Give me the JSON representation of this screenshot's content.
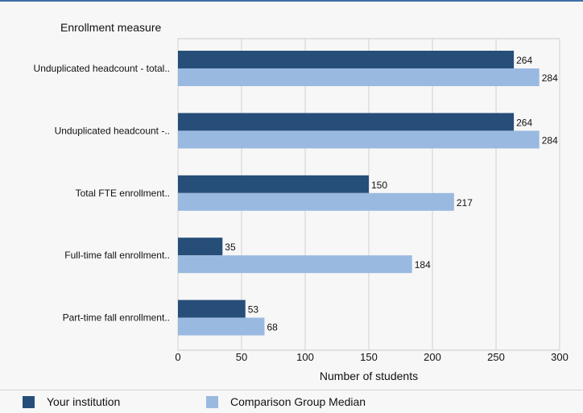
{
  "chart_data": {
    "type": "bar",
    "orientation": "horizontal",
    "ylabel": "Enrollment measure",
    "xlabel": "Number of students",
    "categories": [
      "Unduplicated headcount - total..",
      "Unduplicated headcount -..",
      "Total FTE enrollment..",
      "Full-time fall enrollment..",
      "Part-time fall enrollment.."
    ],
    "series": [
      {
        "name": "Your institution",
        "color": "#264e79",
        "values": [
          264,
          264,
          150,
          35,
          53
        ]
      },
      {
        "name": "Comparison Group Median",
        "color": "#9ab9e0",
        "values": [
          284,
          284,
          217,
          184,
          68
        ]
      }
    ],
    "xlim": [
      0,
      300
    ],
    "xticks": [
      0,
      50,
      100,
      150,
      200,
      250,
      300
    ],
    "grid": true,
    "legend_position": "bottom"
  }
}
